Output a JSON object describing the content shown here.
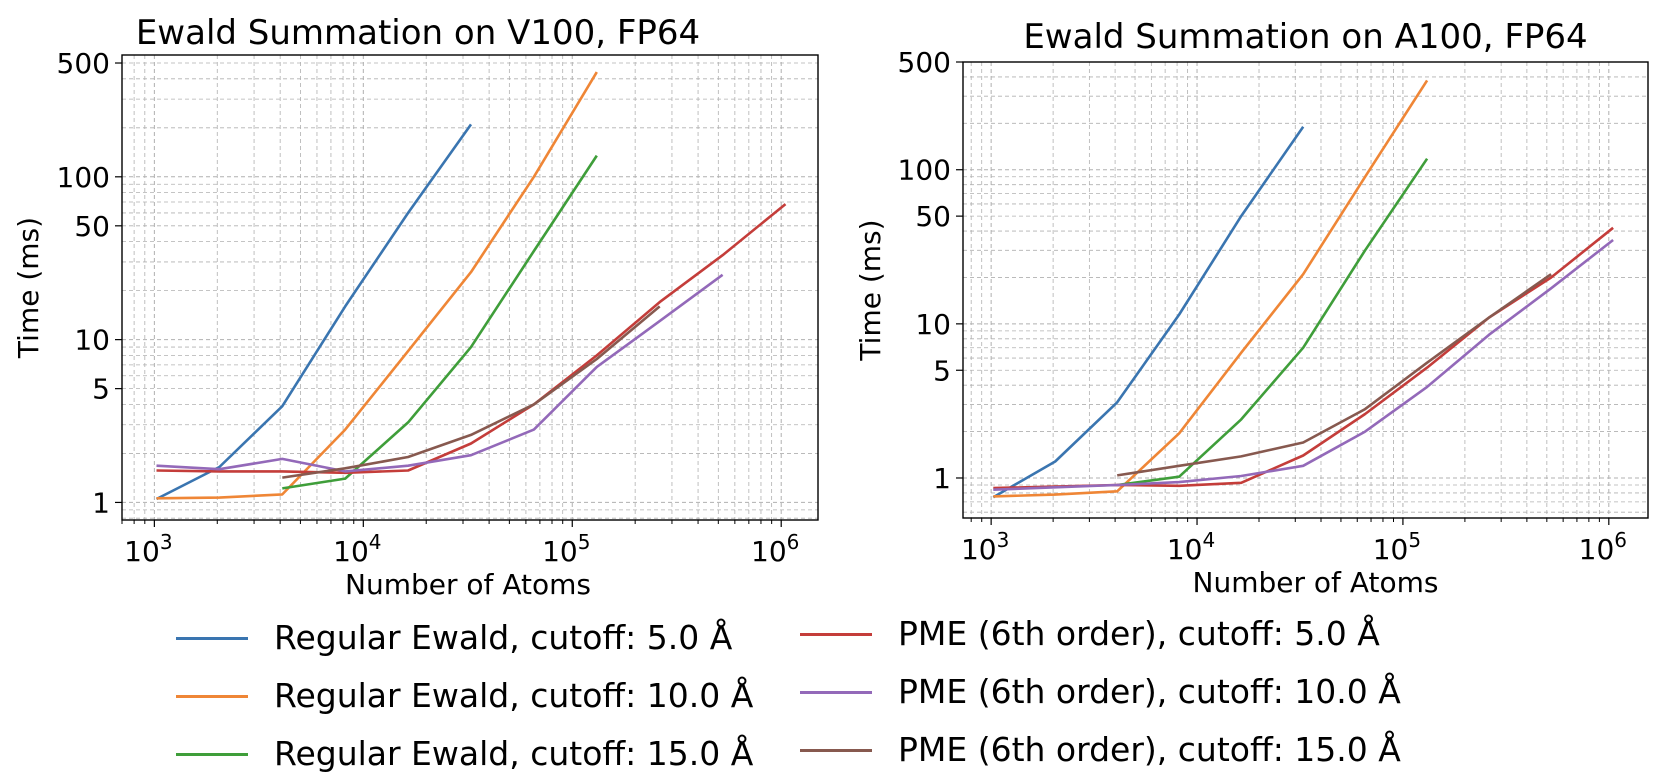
{
  "chart_data": [
    {
      "type": "line",
      "title": "Ewald Summation on V100, FP64",
      "xlabel": "Number of Atoms",
      "ylabel": "Time (ms)",
      "xscale": "log",
      "yscale": "log",
      "xlim": [
        700,
        1500000
      ],
      "ylim": [
        0.78,
        560
      ],
      "xticks": [
        {
          "v": 1000,
          "base": "10",
          "exp": "3"
        },
        {
          "v": 10000,
          "base": "10",
          "exp": "4"
        },
        {
          "v": 100000,
          "base": "10",
          "exp": "5"
        },
        {
          "v": 1000000,
          "base": "10",
          "exp": "6"
        }
      ],
      "yticks": [
        {
          "v": 1,
          "label": "1"
        },
        {
          "v": 5,
          "label": "5"
        },
        {
          "v": 10,
          "label": "10"
        },
        {
          "v": 50,
          "label": "50"
        },
        {
          "v": 100,
          "label": "100"
        },
        {
          "v": 500,
          "label": "500"
        }
      ],
      "grid": true,
      "series": [
        {
          "name": "Regular Ewald, cutoff: 5.0 Å",
          "color": "#3a75b0",
          "x": [
            1024,
            2048,
            4096,
            8192,
            16384,
            32768
          ],
          "y": [
            1.05,
            1.65,
            3.9,
            16,
            60,
            210
          ]
        },
        {
          "name": "Regular Ewald, cutoff: 10.0 Å",
          "color": "#ef8636",
          "x": [
            1024,
            2048,
            4096,
            8192,
            16384,
            32768,
            65536,
            131072
          ],
          "y": [
            1.06,
            1.07,
            1.12,
            2.8,
            8.5,
            26,
            100,
            440
          ]
        },
        {
          "name": "Regular Ewald, cutoff: 15.0 Å",
          "color": "#3f9e3a",
          "x": [
            4096,
            8192,
            16384,
            32768,
            65536,
            131072
          ],
          "y": [
            1.22,
            1.4,
            3.1,
            9,
            35,
            135
          ]
        },
        {
          "name": "PME (6th order), cutoff: 5.0 Å",
          "color": "#c43d3a",
          "x": [
            1024,
            2048,
            4096,
            8192,
            16384,
            32768,
            65536,
            131072,
            262144,
            524288,
            1048576
          ],
          "y": [
            1.57,
            1.55,
            1.55,
            1.52,
            1.57,
            2.3,
            4,
            8,
            17,
            33,
            68
          ]
        },
        {
          "name": "PME (6th order), cutoff: 10.0 Å",
          "color": "#9369b9",
          "x": [
            1024,
            2048,
            4096,
            8192,
            16384,
            32768,
            65536,
            131072,
            262144,
            524288
          ],
          "y": [
            1.68,
            1.6,
            1.85,
            1.55,
            1.68,
            1.95,
            2.8,
            6.8,
            13,
            25
          ]
        },
        {
          "name": "PME (6th order), cutoff: 15.0 Å",
          "color": "#87594f",
          "x": [
            4096,
            8192,
            16384,
            32768,
            65536,
            131072,
            262144
          ],
          "y": [
            1.42,
            1.62,
            1.9,
            2.6,
            4,
            7.6,
            16
          ]
        }
      ]
    },
    {
      "type": "line",
      "title": "Ewald Summation on A100, FP64",
      "xlabel": "Number of Atoms",
      "ylabel": "Time (ms)",
      "xscale": "log",
      "yscale": "log",
      "xlim": [
        730,
        1550000
      ],
      "ylim": [
        0.55,
        500
      ],
      "xticks": [
        {
          "v": 1000,
          "base": "10",
          "exp": "3"
        },
        {
          "v": 10000,
          "base": "10",
          "exp": "4"
        },
        {
          "v": 100000,
          "base": "10",
          "exp": "5"
        },
        {
          "v": 1000000,
          "base": "10",
          "exp": "6"
        }
      ],
      "yticks": [
        {
          "v": 1,
          "label": "1"
        },
        {
          "v": 5,
          "label": "5"
        },
        {
          "v": 10,
          "label": "10"
        },
        {
          "v": 50,
          "label": "50"
        },
        {
          "v": 100,
          "label": "100"
        },
        {
          "v": 500,
          "label": "500"
        }
      ],
      "grid": true,
      "series": [
        {
          "name": "Regular Ewald, cutoff: 5.0 Å",
          "color": "#3a75b0",
          "x": [
            1024,
            2048,
            4096,
            8192,
            16384,
            32768
          ],
          "y": [
            0.75,
            1.28,
            3.1,
            11.5,
            50,
            190
          ]
        },
        {
          "name": "Regular Ewald, cutoff: 10.0 Å",
          "color": "#ef8636",
          "x": [
            1024,
            2048,
            4096,
            8192,
            16384,
            32768,
            65536,
            131072
          ],
          "y": [
            0.76,
            0.78,
            0.82,
            1.95,
            6.5,
            21,
            90,
            380
          ]
        },
        {
          "name": "Regular Ewald, cutoff: 15.0 Å",
          "color": "#3f9e3a",
          "x": [
            4096,
            8192,
            16384,
            32768,
            65536,
            131072
          ],
          "y": [
            0.9,
            1.02,
            2.4,
            7,
            30,
            118
          ]
        },
        {
          "name": "PME (6th order), cutoff: 5.0 Å",
          "color": "#c43d3a",
          "x": [
            1024,
            2048,
            4096,
            8192,
            16384,
            32768,
            65536,
            131072,
            262144,
            524288,
            1048576
          ],
          "y": [
            0.86,
            0.88,
            0.9,
            0.89,
            0.93,
            1.4,
            2.6,
            5.2,
            11,
            20,
            42
          ]
        },
        {
          "name": "PME (6th order), cutoff: 10.0 Å",
          "color": "#9369b9",
          "x": [
            1024,
            2048,
            4096,
            8192,
            16384,
            32768,
            65536,
            131072,
            262144,
            524288,
            1048576
          ],
          "y": [
            0.84,
            0.87,
            0.9,
            0.94,
            1.03,
            1.2,
            2.0,
            3.9,
            8.5,
            17,
            35
          ]
        },
        {
          "name": "PME (6th order), cutoff: 15.0 Å",
          "color": "#87594f",
          "x": [
            4096,
            8192,
            16384,
            32768,
            65536,
            131072,
            262144,
            524288
          ],
          "y": [
            1.04,
            1.2,
            1.38,
            1.7,
            2.8,
            5.6,
            11,
            21
          ]
        }
      ]
    }
  ],
  "legend": [
    {
      "label": "Regular Ewald, cutoff: 5.0 Å",
      "color": "#3a75b0"
    },
    {
      "label": "Regular Ewald, cutoff: 10.0 Å",
      "color": "#ef8636"
    },
    {
      "label": "Regular Ewald, cutoff: 15.0 Å",
      "color": "#3f9e3a"
    },
    {
      "label": "PME (6th order), cutoff: 5.0 Å",
      "color": "#c43d3a"
    },
    {
      "label": "PME (6th order), cutoff: 10.0 Å",
      "color": "#9369b9"
    },
    {
      "label": "PME (6th order), cutoff: 15.0 Å",
      "color": "#87594f"
    }
  ]
}
